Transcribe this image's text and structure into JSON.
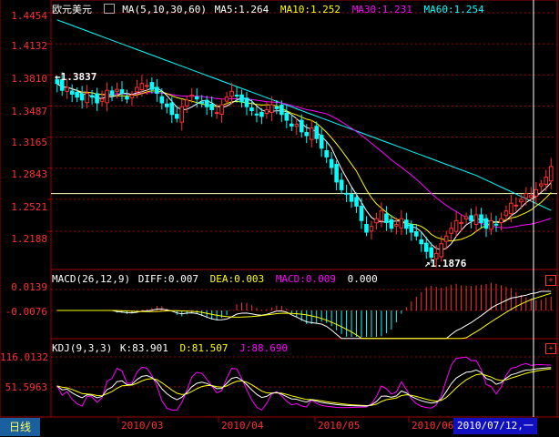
{
  "main_header": {
    "symbol": "欧元美元",
    "indicator": "MA(5,10,30,60)",
    "ma5": "MA5:1.264",
    "ma10": "MA10:1.252",
    "ma30": "MA30:1.231",
    "ma60": "MA60:1.254"
  },
  "macd_header": {
    "name": "MACD(26,12,9)",
    "diff": "DIFF:0.007",
    "dea": "DEA:0.003",
    "macd": "MACD:0.009",
    "extra": "0.000"
  },
  "kdj_header": {
    "name": "KDJ(9,3,3)",
    "k": "K:83.901",
    "d": "D:81.507",
    "j": "J:88.690"
  },
  "main_axis": [
    "1.4454",
    "1.4132",
    "1.3810",
    "1.3487",
    "1.3165",
    "1.2843",
    "1.2521",
    "1.2188"
  ],
  "macd_axis": [
    "0.0139",
    "-0.0076"
  ],
  "kdj_axis": [
    "116.0132",
    "51.5963"
  ],
  "x_axis": [
    "2010/03",
    "2010/04",
    "2010/05",
    "2010/06"
  ],
  "annotations": {
    "high": "1.3837",
    "low": "1.1876"
  },
  "period": "日线",
  "cursor_date": "2010/07/12,一",
  "plus_icon": "+",
  "colors": {
    "up": "#ff3030",
    "down": "#00ffff",
    "ma5": "#ffffff",
    "ma10": "#ffff00",
    "ma30": "#ff00ff",
    "ma60": "#00ffff",
    "grid": "#a00000"
  },
  "chart_data": {
    "type": "candlestick",
    "x_ticks": [
      "2010/03",
      "2010/04",
      "2010/05",
      "2010/06"
    ],
    "y_ticks": [
      1.4454,
      1.4132,
      1.381,
      1.3487,
      1.3165,
      1.2843,
      1.2521,
      1.2188
    ],
    "ylim": [
      1.185,
      1.4454
    ],
    "horizontal_line": 1.258,
    "ma_legend": [
      "MA5:1.264",
      "MA10:1.252",
      "MA30:1.231",
      "MA60:1.254"
    ],
    "close_series": [
      1.372,
      1.365,
      1.368,
      1.361,
      1.358,
      1.355,
      1.362,
      1.358,
      1.352,
      1.356,
      1.365,
      1.36,
      1.366,
      1.362,
      1.356,
      1.36,
      1.368,
      1.372,
      1.37,
      1.366,
      1.362,
      1.352,
      1.348,
      1.34,
      1.336,
      1.348,
      1.355,
      1.36,
      1.356,
      1.352,
      1.348,
      1.345,
      1.342,
      1.35,
      1.358,
      1.364,
      1.36,
      1.353,
      1.348,
      1.344,
      1.34,
      1.338,
      1.345,
      1.35,
      1.346,
      1.34,
      1.334,
      1.328,
      1.33,
      1.322,
      1.318,
      1.326,
      1.315,
      1.305,
      1.296,
      1.285,
      1.27,
      1.262,
      1.258,
      1.25,
      1.245,
      1.23,
      1.218,
      1.224,
      1.232,
      1.24,
      1.228,
      1.222,
      1.226,
      1.232,
      1.222,
      1.218,
      1.214,
      1.206,
      1.198,
      1.192,
      1.196,
      1.206,
      1.214,
      1.222,
      1.23,
      1.228,
      1.234,
      1.23,
      1.236,
      1.228,
      1.222,
      1.23,
      1.226,
      1.232,
      1.24,
      1.248,
      1.246,
      1.252,
      1.258,
      1.256,
      1.262,
      1.268,
      1.275,
      1.286
    ]
  }
}
